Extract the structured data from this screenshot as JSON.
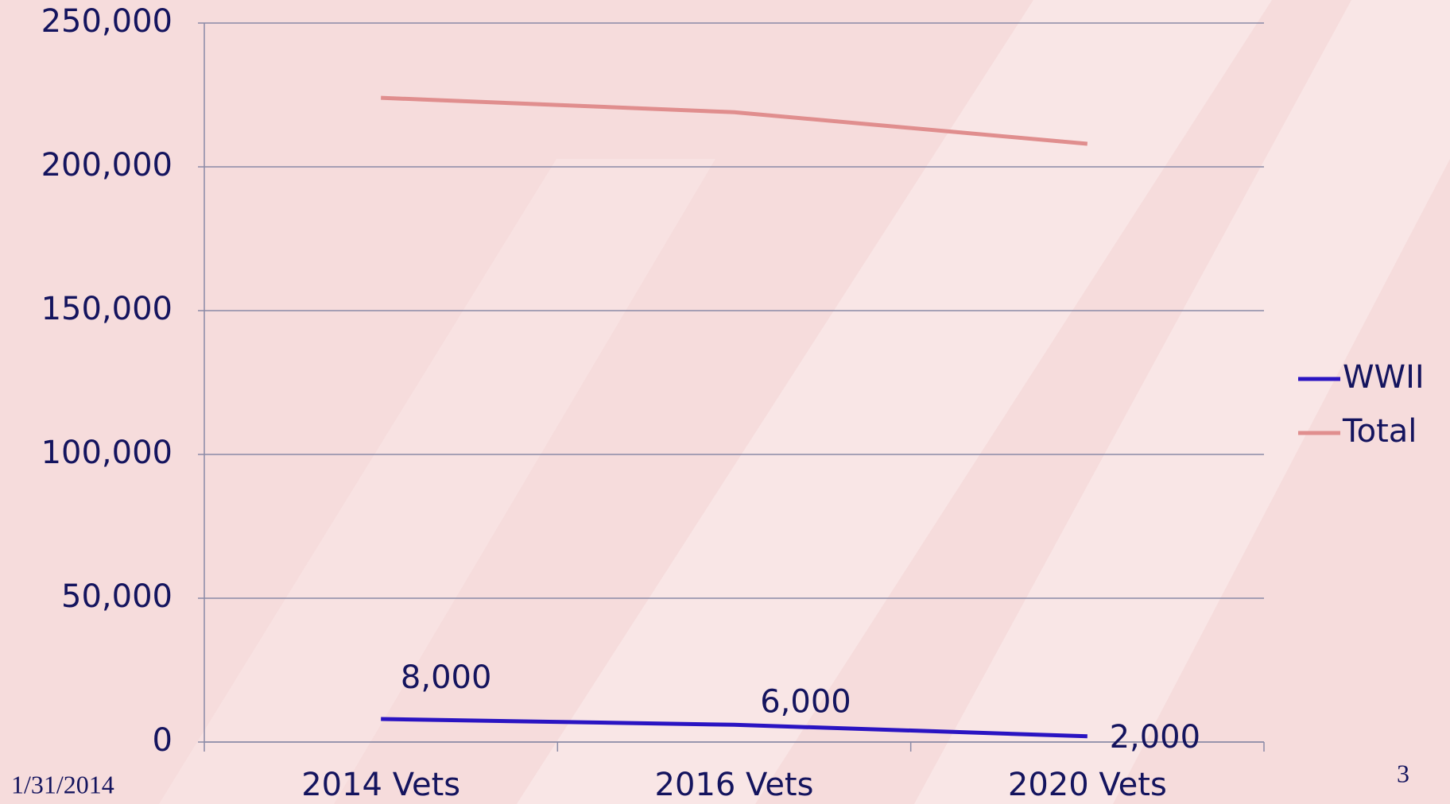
{
  "chart_data": {
    "type": "line",
    "categories": [
      "2014 Vets",
      "2016 Vets",
      "2020 Vets"
    ],
    "series": [
      {
        "name": "WWII",
        "color": "#2a14c2",
        "values": [
          8000,
          6000,
          2000
        ],
        "value_labels": [
          "8,000",
          "6,000",
          "2,000"
        ]
      },
      {
        "name": "Total",
        "color": "#e08e8e",
        "values": [
          224000,
          219000,
          208000
        ]
      }
    ],
    "ylim": [
      0,
      250000
    ],
    "yticks": [
      0,
      {
        "value": 50000,
        "label": "50,000"
      },
      {
        "value": 100000,
        "label": "100,000"
      },
      {
        "value": 150000,
        "label": "150,000"
      },
      {
        "value": 200000,
        "label": "200,000"
      },
      {
        "value": 250000,
        "label": "250,000"
      }
    ],
    "grid": true,
    "legend": "right"
  },
  "footer": {
    "date": "1/31/2014",
    "page_number": "3"
  }
}
